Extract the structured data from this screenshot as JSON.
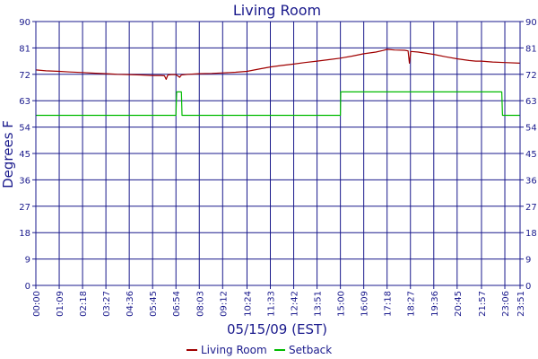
{
  "chart_data": {
    "type": "line",
    "title": "Living Room",
    "xlabel": "05/15/09 (EST)",
    "ylabel": "Degrees F",
    "ylim": [
      0,
      90
    ],
    "yticks": [
      0,
      9,
      18,
      27,
      36,
      45,
      54,
      63,
      72,
      81,
      90
    ],
    "xlim_minutes": [
      0,
      1431
    ],
    "xtick_labels": [
      "00:00",
      "01:09",
      "02:18",
      "03:27",
      "04:36",
      "05:45",
      "06:54",
      "08:03",
      "09:12",
      "10:24",
      "11:33",
      "12:42",
      "13:51",
      "15:00",
      "16:09",
      "17:18",
      "18:27",
      "19:36",
      "20:45",
      "21:57",
      "23:06",
      "23:51"
    ],
    "grid": true,
    "legend_position": "bottom-center",
    "series": [
      {
        "name": "Living Room",
        "color": "#a00000",
        "points": [
          [
            "00:00",
            73.5
          ],
          [
            "00:30",
            73.2
          ],
          [
            "01:09",
            73.0
          ],
          [
            "01:40",
            72.8
          ],
          [
            "02:18",
            72.6
          ],
          [
            "02:50",
            72.4
          ],
          [
            "03:27",
            72.2
          ],
          [
            "04:00",
            72.0
          ],
          [
            "04:36",
            71.9
          ],
          [
            "05:10",
            71.8
          ],
          [
            "05:45",
            71.6
          ],
          [
            "06:10",
            71.6
          ],
          [
            "06:20",
            71.5
          ],
          [
            "06:25",
            70.3
          ],
          [
            "06:30",
            71.8
          ],
          [
            "06:40",
            71.9
          ],
          [
            "06:54",
            71.9
          ],
          [
            "07:00",
            71.4
          ],
          [
            "07:05",
            71.0
          ],
          [
            "07:10",
            71.8
          ],
          [
            "07:30",
            72.0
          ],
          [
            "08:03",
            72.2
          ],
          [
            "08:40",
            72.3
          ],
          [
            "09:12",
            72.5
          ],
          [
            "09:50",
            72.7
          ],
          [
            "10:24",
            73.0
          ],
          [
            "11:00",
            73.8
          ],
          [
            "11:33",
            74.5
          ],
          [
            "12:05",
            75.0
          ],
          [
            "12:42",
            75.5
          ],
          [
            "13:15",
            76.0
          ],
          [
            "13:51",
            76.5
          ],
          [
            "14:25",
            77.0
          ],
          [
            "15:00",
            77.5
          ],
          [
            "15:35",
            78.2
          ],
          [
            "16:09",
            79.0
          ],
          [
            "16:45",
            79.6
          ],
          [
            "17:05",
            80.1
          ],
          [
            "17:18",
            80.5
          ],
          [
            "17:40",
            80.3
          ],
          [
            "18:10",
            80.2
          ],
          [
            "18:20",
            80.0
          ],
          [
            "18:24",
            75.8
          ],
          [
            "18:28",
            79.8
          ],
          [
            "18:50",
            79.6
          ],
          [
            "19:36",
            78.8
          ],
          [
            "20:10",
            78.0
          ],
          [
            "20:45",
            77.3
          ],
          [
            "21:20",
            76.7
          ],
          [
            "21:40",
            76.5
          ],
          [
            "21:57",
            76.5
          ],
          [
            "22:30",
            76.2
          ],
          [
            "23:06",
            76.0
          ],
          [
            "23:51",
            75.8
          ]
        ]
      },
      {
        "name": "Setback",
        "color": "#00bb00",
        "points": [
          [
            "00:00",
            58.0
          ],
          [
            "06:54",
            58.0
          ],
          [
            "06:56",
            66.0
          ],
          [
            "07:10",
            66.0
          ],
          [
            "07:12",
            58.0
          ],
          [
            "15:00",
            58.0
          ],
          [
            "15:01",
            66.0
          ],
          [
            "22:57",
            66.0
          ],
          [
            "22:59",
            58.0
          ],
          [
            "23:51",
            58.0
          ]
        ]
      }
    ]
  }
}
